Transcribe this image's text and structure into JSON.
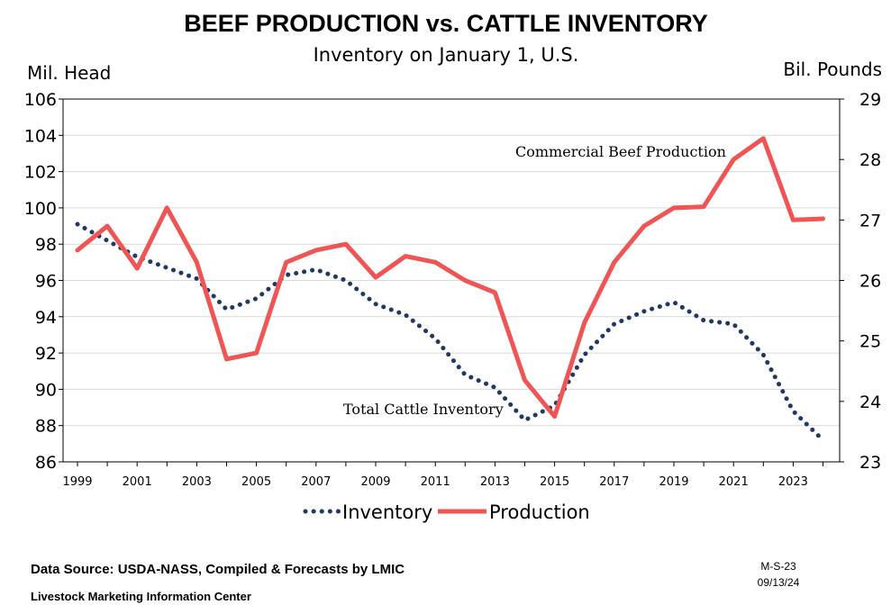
{
  "chart_data": {
    "type": "line",
    "title": "BEEF PRODUCTION vs. CATTLE INVENTORY",
    "subtitle": "Inventory on January 1, U.S.",
    "ylabel_left": "Mil. Head",
    "ylabel_right": "Bil. Pounds",
    "ylim_left": [
      86,
      106
    ],
    "ylim_right": [
      23,
      29
    ],
    "yticks_left": [
      86,
      88,
      90,
      92,
      94,
      96,
      98,
      100,
      102,
      104,
      106
    ],
    "yticks_right": [
      23,
      24,
      25,
      26,
      27,
      28,
      29
    ],
    "x": [
      1999,
      2000,
      2001,
      2002,
      2003,
      2004,
      2005,
      2006,
      2007,
      2008,
      2009,
      2010,
      2011,
      2012,
      2013,
      2014,
      2015,
      2016,
      2017,
      2018,
      2019,
      2020,
      2021,
      2022,
      2023,
      2024
    ],
    "xtick_labels": [
      "1999",
      "2001",
      "2003",
      "2005",
      "2007",
      "2009",
      "2011",
      "2013",
      "2015",
      "2017",
      "2019",
      "2021",
      "2023"
    ],
    "grid": "horizontal",
    "legend_position": "bottom",
    "series": [
      {
        "name": "Inventory",
        "axis": "left",
        "style": "dotted",
        "color": "#1f3864",
        "values": [
          99.1,
          98.2,
          97.3,
          96.7,
          96.1,
          94.4,
          95.0,
          96.3,
          96.6,
          96.0,
          94.7,
          94.1,
          92.8,
          90.8,
          90.1,
          88.3,
          89.1,
          91.9,
          93.6,
          94.3,
          94.8,
          93.8,
          93.6,
          91.9,
          88.8,
          87.2
        ]
      },
      {
        "name": "Production",
        "axis": "right",
        "style": "solid",
        "color": "#f05454",
        "values": [
          26.5,
          26.9,
          26.2,
          27.2,
          26.3,
          24.7,
          24.8,
          26.3,
          26.5,
          26.6,
          26.05,
          26.4,
          26.3,
          26.0,
          25.8,
          24.35,
          23.75,
          25.3,
          26.3,
          26.9,
          27.2,
          27.22,
          28.0,
          28.35,
          27.0,
          27.02
        ]
      }
    ],
    "annotations": [
      {
        "text": "Commercial Beef Production",
        "near_series": "Production",
        "anchor_year": 2020
      },
      {
        "text": "Total Cattle Inventory",
        "near_series": "Inventory",
        "anchor_year": 2012
      }
    ]
  },
  "footer": {
    "source": "Data Source:  USDA-NASS, Compiled & Forecasts by LMIC",
    "organization": "Livestock Marketing Information Center",
    "chart_code": "M-S-23",
    "date": "09/13/24"
  }
}
